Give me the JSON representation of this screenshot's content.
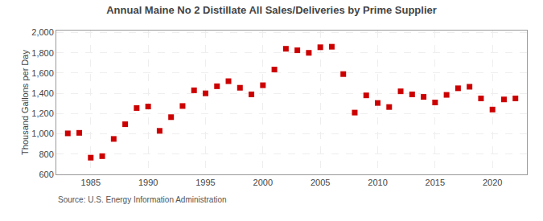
{
  "chart_data": {
    "type": "scatter",
    "title": "Annual Maine No 2 Distillate All Sales/Deliveries by Prime Supplier",
    "ylabel": "Thousand Gallons per Day",
    "source": "Source: U.S. Energy Information Administration",
    "x": [
      1983,
      1984,
      1985,
      1986,
      1987,
      1988,
      1989,
      1990,
      1991,
      1992,
      1993,
      1994,
      1995,
      1996,
      1997,
      1998,
      1999,
      2000,
      2001,
      2002,
      2003,
      2004,
      2005,
      2006,
      2007,
      2008,
      2009,
      2010,
      2011,
      2012,
      2013,
      2014,
      2015,
      2016,
      2017,
      2018,
      2019,
      2020,
      2021,
      2022
    ],
    "values": [
      1005,
      1010,
      765,
      780,
      950,
      1095,
      1255,
      1270,
      1030,
      1165,
      1275,
      1430,
      1400,
      1470,
      1520,
      1455,
      1390,
      1480,
      1635,
      1840,
      1825,
      1800,
      1855,
      1860,
      1590,
      1210,
      1380,
      1305,
      1265,
      1420,
      1390,
      1365,
      1310,
      1385,
      1450,
      1465,
      1350,
      1240,
      1340,
      1350
    ],
    "color": "#cc0000",
    "marker": "square",
    "xlim": [
      1982,
      2023
    ],
    "xticks": [
      1985,
      1990,
      1995,
      2000,
      2005,
      2010,
      2015,
      2020
    ],
    "ylim": [
      600,
      2020
    ],
    "yticks": [
      600,
      800,
      {
        "value": 1000,
        "label": "1,000"
      },
      {
        "value": 1200,
        "label": "1,200"
      },
      {
        "value": 1400,
        "label": "1,400"
      },
      {
        "value": 1600,
        "label": "1,600"
      },
      {
        "value": 1800,
        "label": "1,800"
      },
      {
        "value": 2000,
        "label": "2,000"
      }
    ],
    "grid": true
  }
}
